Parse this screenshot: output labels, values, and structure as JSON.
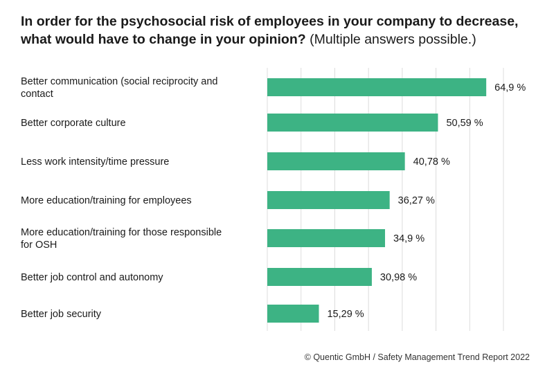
{
  "header": {
    "title_bold": "In order for the psychosocial risk of employees in your company to decrease, what would have to change in your opinion?",
    "title_note": "(Multiple answers possible.)"
  },
  "footer": {
    "credit": "© Quentic GmbH / Safety Management Trend Report 2022"
  },
  "chart_data": {
    "type": "bar",
    "orientation": "horizontal",
    "categories": [
      [
        "Better communication (social reciprocity and",
        "contact"
      ],
      [
        "Better corporate culture"
      ],
      [
        "Less work intensity/time pressure"
      ],
      [
        "More education/training for employees"
      ],
      [
        "More education/training for those responsible",
        "for OSH"
      ],
      [
        "Better job control and autonomy"
      ],
      [
        "Better job security"
      ]
    ],
    "values": [
      64.9,
      50.59,
      40.78,
      36.27,
      34.9,
      30.98,
      15.29
    ],
    "value_labels": [
      "64,9 %",
      "50,59 %",
      "40,78 %",
      "36,27 %",
      "34,9 %",
      "30,98 %",
      "15,29 %"
    ],
    "xlim": [
      0,
      70
    ],
    "grid": true,
    "bar_color": "#3db384",
    "grid_color": "#dcdcdc"
  }
}
